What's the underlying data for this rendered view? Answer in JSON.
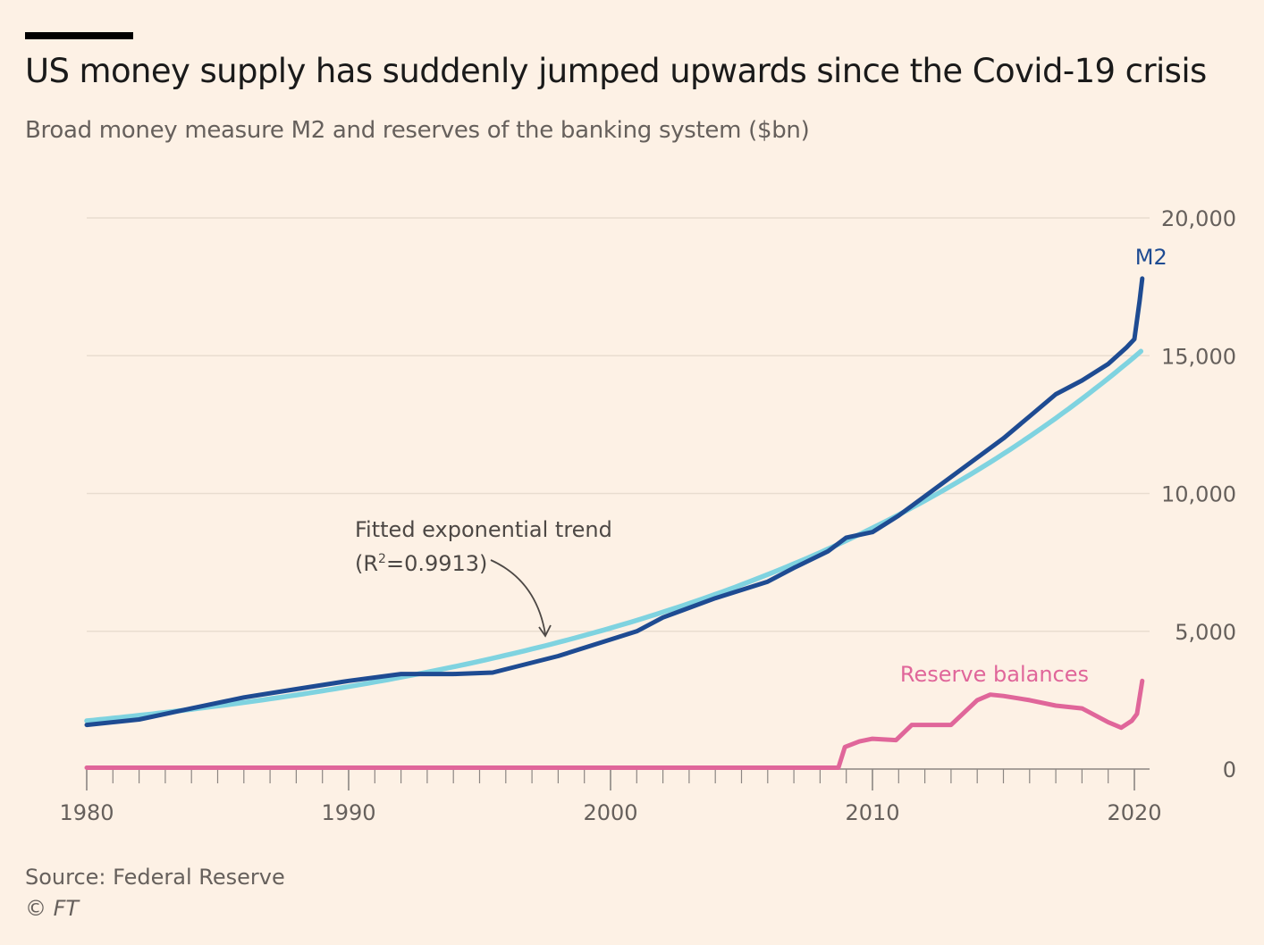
{
  "title": "US money supply has suddenly jumped upwards since the Covid-19 crisis",
  "subtitle": "Broad money measure M2 and reserves of the banking system ($bn)",
  "source": "Source: Federal Reserve",
  "credit": "© FT",
  "colors": {
    "background": "#fdf1e5",
    "m2": "#1e4b92",
    "trend": "#7fd3e0",
    "reserves": "#e0669a",
    "grid": "#e9ddd0",
    "axis_text": "#66605c"
  },
  "annotation": {
    "line1": "Fitted exponential trend",
    "line2_prefix": "(R",
    "line2_sup": "2",
    "line2_suffix": "=0.9913)"
  },
  "chart_data": {
    "type": "line",
    "x_unit": "year",
    "xlim": [
      1980,
      2020.8
    ],
    "ylim": [
      0,
      20000
    ],
    "x_ticks": [
      1980,
      1990,
      2000,
      2010,
      2020
    ],
    "x_tick_labels": [
      "1980",
      "1990",
      "2000",
      "2010",
      "2020"
    ],
    "y_ticks": [
      0,
      5000,
      10000,
      15000,
      20000
    ],
    "y_tick_labels": [
      "0",
      "5,000",
      "10,000",
      "15,000",
      "20,000"
    ],
    "y_axis_side": "right",
    "grid": "horizontal",
    "series": [
      {
        "name": "M2",
        "label_position": "end",
        "points": [
          [
            1980,
            1600
          ],
          [
            1982,
            1800
          ],
          [
            1984,
            2200
          ],
          [
            1986,
            2600
          ],
          [
            1988,
            2900
          ],
          [
            1990,
            3200
          ],
          [
            1992,
            3450
          ],
          [
            1994,
            3450
          ],
          [
            1995.5,
            3500
          ],
          [
            1998,
            4100
          ],
          [
            2000,
            4700
          ],
          [
            2001,
            5000
          ],
          [
            2002,
            5500
          ],
          [
            2004,
            6200
          ],
          [
            2006,
            6800
          ],
          [
            2007,
            7300
          ],
          [
            2008.3,
            7900
          ],
          [
            2009,
            8400
          ],
          [
            2010,
            8600
          ],
          [
            2011,
            9200
          ],
          [
            2012,
            9900
          ],
          [
            2013,
            10600
          ],
          [
            2014,
            11300
          ],
          [
            2015,
            12000
          ],
          [
            2016,
            12800
          ],
          [
            2017,
            13600
          ],
          [
            2018,
            14100
          ],
          [
            2019,
            14700
          ],
          [
            2019.7,
            15300
          ],
          [
            2020.0,
            15600
          ],
          [
            2020.2,
            17000
          ],
          [
            2020.3,
            17800
          ]
        ]
      },
      {
        "name": "Reserve balances",
        "label_position": "above",
        "points": [
          [
            1980,
            50
          ],
          [
            1985,
            50
          ],
          [
            1990,
            50
          ],
          [
            1995,
            50
          ],
          [
            2000,
            50
          ],
          [
            2005,
            50
          ],
          [
            2008.7,
            50
          ],
          [
            2008.95,
            800
          ],
          [
            2009.5,
            1000
          ],
          [
            2010,
            1100
          ],
          [
            2010.9,
            1050
          ],
          [
            2011.5,
            1600
          ],
          [
            2012,
            1600
          ],
          [
            2013,
            1600
          ],
          [
            2014,
            2500
          ],
          [
            2014.5,
            2700
          ],
          [
            2015,
            2650
          ],
          [
            2016,
            2500
          ],
          [
            2017,
            2300
          ],
          [
            2018,
            2200
          ],
          [
            2019,
            1700
          ],
          [
            2019.5,
            1500
          ],
          [
            2019.9,
            1750
          ],
          [
            2020.1,
            2000
          ],
          [
            2020.3,
            3200
          ]
        ]
      },
      {
        "name": "Fitted exponential trend",
        "label_position": "annotation",
        "fit": "exponential",
        "r_squared": 0.9913,
        "points": [
          [
            1980,
            1750
          ],
          [
            1985,
            2290
          ],
          [
            1990,
            3000
          ],
          [
            1995,
            3920
          ],
          [
            2000,
            5130
          ],
          [
            2005,
            6720
          ],
          [
            2010,
            8800
          ],
          [
            2015,
            11500
          ],
          [
            2020.3,
            15200
          ]
        ]
      }
    ]
  }
}
